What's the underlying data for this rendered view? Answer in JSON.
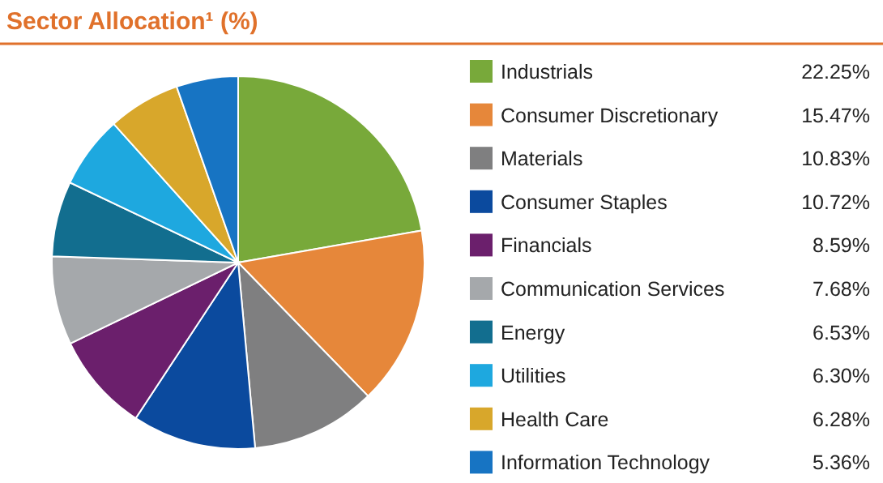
{
  "chart_data": {
    "type": "pie",
    "title": "Sector Allocation¹ (%)",
    "categories": [
      "Industrials",
      "Consumer Discretionary",
      "Materials",
      "Consumer Staples",
      "Financials",
      "Communication Services",
      "Energy",
      "Utilities",
      "Health Care",
      "Information Technology"
    ],
    "values": [
      22.25,
      15.47,
      10.83,
      10.72,
      8.59,
      7.68,
      6.53,
      6.3,
      6.28,
      5.36
    ],
    "value_labels": [
      "22.25%",
      "15.47%",
      "10.83%",
      "10.72%",
      "8.59%",
      "7.68%",
      "6.53%",
      "6.30%",
      "6.28%",
      "5.36%"
    ],
    "colors": [
      "#78a93a",
      "#e6873a",
      "#7f7f80",
      "#0b4a9e",
      "#6b1f6c",
      "#a5a8ab",
      "#126e8f",
      "#1ea8df",
      "#d8a72b",
      "#1774c3"
    ],
    "legend": "right"
  }
}
